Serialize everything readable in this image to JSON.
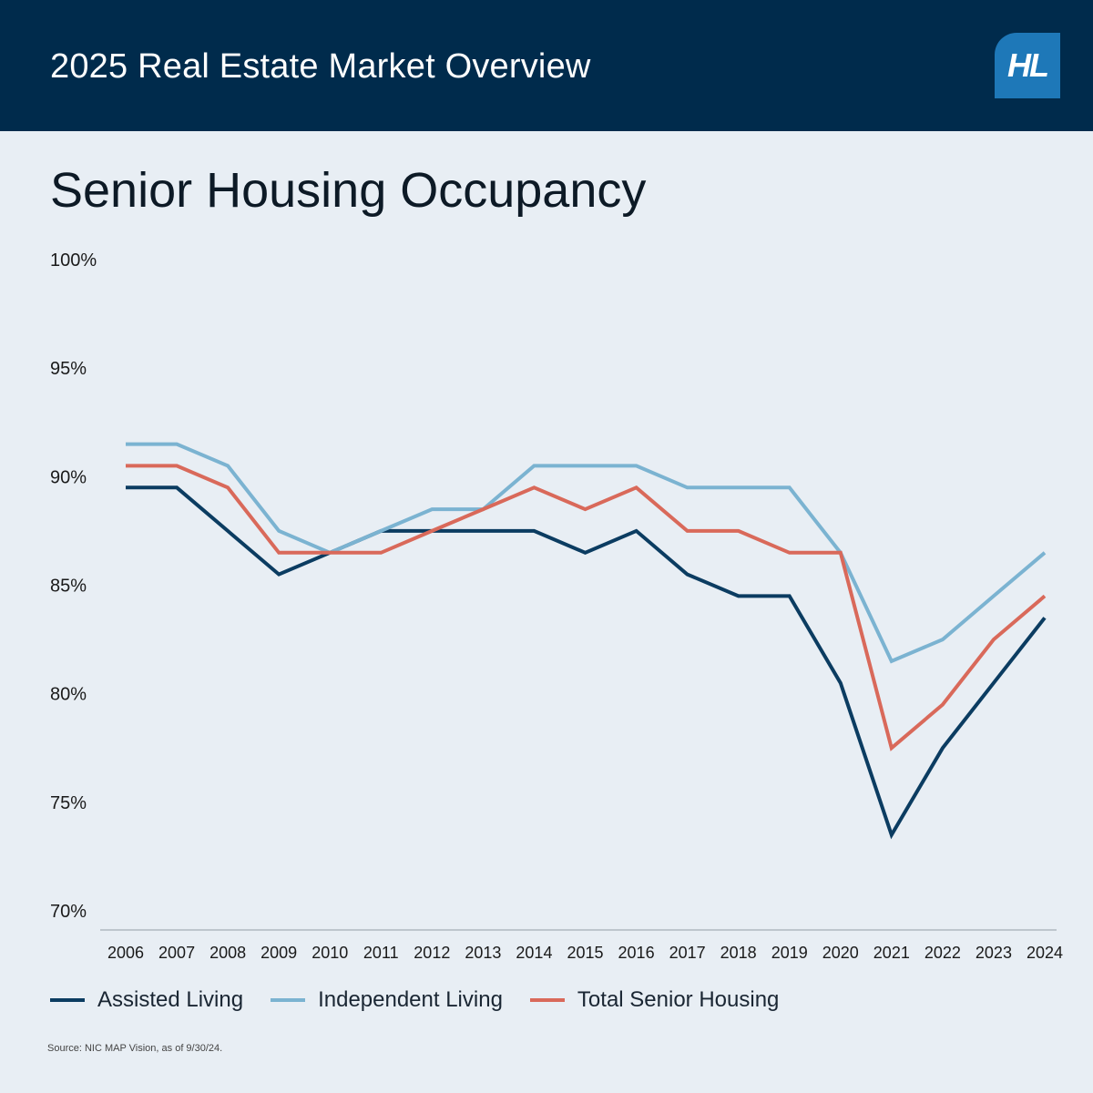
{
  "header": {
    "title": "2025 Real Estate Market Overview",
    "logo_text": "HL",
    "background": "#002b4c",
    "logo_color": "#1e78b8"
  },
  "chart_data": {
    "type": "line",
    "title": "Senior Housing Occupancy",
    "x": [
      "2006",
      "2007",
      "2008",
      "2009",
      "2010",
      "2011",
      "2012",
      "2013",
      "2014",
      "2015",
      "2016",
      "2017",
      "2018",
      "2019",
      "2020",
      "2021",
      "2022",
      "2023",
      "2024"
    ],
    "ylim": [
      70,
      100
    ],
    "yticks": [
      100,
      95,
      90,
      85,
      80,
      75,
      70
    ],
    "ytick_labels": [
      "100%",
      "95%",
      "90%",
      "85%",
      "80%",
      "75%",
      "70%"
    ],
    "grid": false,
    "legend_position": "bottom-left",
    "series": [
      {
        "name": "Assisted Living",
        "color": "#0b3c61",
        "values": [
          89.5,
          89.5,
          87.5,
          85.5,
          86.5,
          87.5,
          87.5,
          87.5,
          87.5,
          86.5,
          87.5,
          85.5,
          84.5,
          84.5,
          80.5,
          73.5,
          77.5,
          80.5,
          83.5
        ]
      },
      {
        "name": "Independent Living",
        "color": "#7bb3d1",
        "values": [
          91.5,
          91.5,
          90.5,
          87.5,
          86.5,
          87.5,
          88.5,
          88.5,
          90.5,
          90.5,
          90.5,
          89.5,
          89.5,
          89.5,
          86.5,
          81.5,
          82.5,
          84.5,
          86.5
        ]
      },
      {
        "name": "Total Senior Housing",
        "color": "#d9695a",
        "values": [
          90.5,
          90.5,
          89.5,
          86.5,
          86.5,
          86.5,
          87.5,
          88.5,
          89.5,
          88.5,
          89.5,
          87.5,
          87.5,
          86.5,
          86.5,
          77.5,
          79.5,
          82.5,
          84.5
        ]
      }
    ]
  },
  "source": "Source: NIC MAP Vision, as of 9/30/24."
}
